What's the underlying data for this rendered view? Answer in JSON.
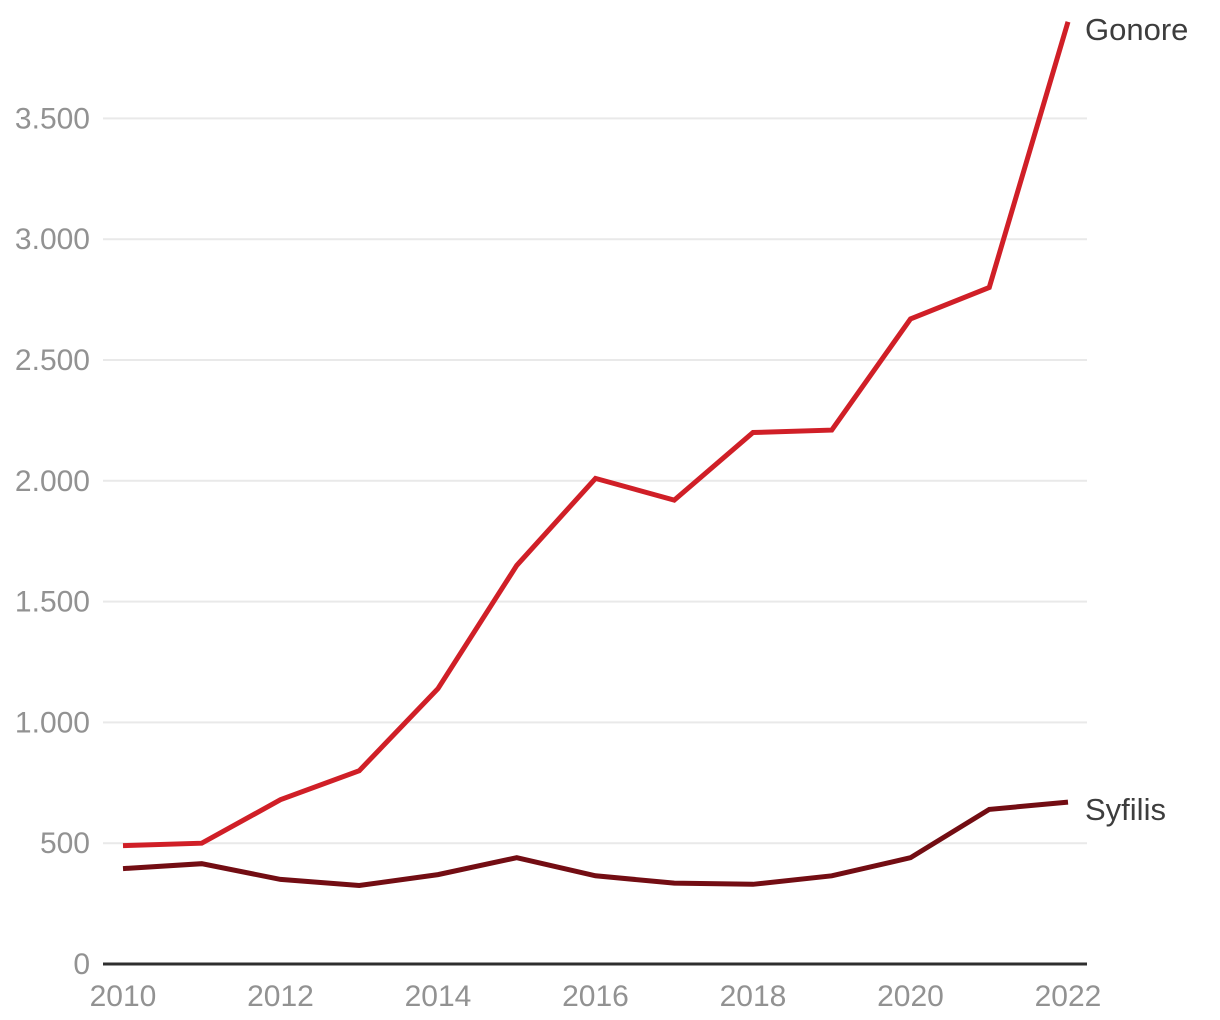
{
  "chart_data": {
    "type": "line",
    "title": "",
    "xlabel": "",
    "ylabel": "",
    "x": [
      2010,
      2011,
      2012,
      2013,
      2014,
      2015,
      2016,
      2017,
      2018,
      2019,
      2020,
      2021,
      2022
    ],
    "series": [
      {
        "name": "Gonore",
        "color": "#d01f27",
        "values": [
          490,
          500,
          680,
          800,
          1140,
          1650,
          2010,
          1920,
          2200,
          2210,
          2670,
          2800,
          3900
        ]
      },
      {
        "name": "Syfilis",
        "color": "#730d13",
        "values": [
          395,
          415,
          350,
          325,
          370,
          440,
          365,
          335,
          330,
          365,
          440,
          640,
          670
        ]
      }
    ],
    "xticks": [
      {
        "value": 2010,
        "label": "2010"
      },
      {
        "value": 2012,
        "label": "2012"
      },
      {
        "value": 2014,
        "label": "2014"
      },
      {
        "value": 2016,
        "label": "2016"
      },
      {
        "value": 2018,
        "label": "2018"
      },
      {
        "value": 2020,
        "label": "2020"
      },
      {
        "value": 2022,
        "label": "2022"
      }
    ],
    "yticks": [
      {
        "value": 0,
        "label": "0"
      },
      {
        "value": 500,
        "label": "500"
      },
      {
        "value": 1000,
        "label": "1.000"
      },
      {
        "value": 1500,
        "label": "1.500"
      },
      {
        "value": 2000,
        "label": "2.000"
      },
      {
        "value": 2500,
        "label": "2.500"
      },
      {
        "value": 3000,
        "label": "3.000"
      },
      {
        "value": 3500,
        "label": "3.500"
      }
    ],
    "ylim": [
      0,
      3990
    ],
    "xlim": [
      2010,
      2022
    ],
    "grid": "horizontal-only",
    "legend_position": "line-end-labels-right",
    "colors": {
      "background": "#ffffff",
      "gridline": "#e9e9e9",
      "axis_line": "#2f2f2f",
      "tick_text": "#929292",
      "series_label_text": "#3d3d3d"
    }
  }
}
